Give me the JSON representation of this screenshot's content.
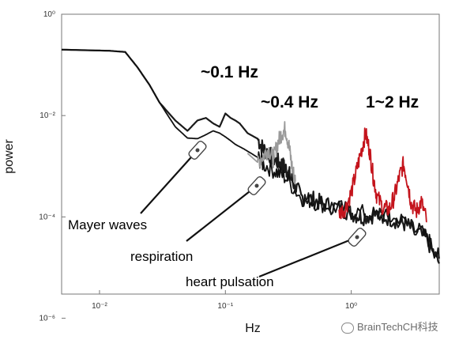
{
  "chart_data": {
    "type": "line",
    "xlabel": "Hz",
    "ylabel": "power",
    "x_scale": "log",
    "y_scale": "log",
    "xlim": [
      0.005,
      5
    ],
    "ylim": [
      3e-06,
      1
    ],
    "x_ticks": [
      {
        "value": 0.01,
        "label": "10⁻²"
      },
      {
        "value": 0.1,
        "label": "10⁻¹"
      },
      {
        "value": 1,
        "label": "10⁰"
      }
    ],
    "y_ticks": [
      {
        "value": 1,
        "label": "10⁰"
      },
      {
        "value": 0.01,
        "label": "10⁻²"
      },
      {
        "value": 0.0001,
        "label": "10⁻⁴"
      },
      {
        "value": 1e-06,
        "label": "10⁻⁶"
      }
    ],
    "grid": false,
    "series": [
      {
        "color": "#1a1a1a",
        "x": [
          0.005,
          0.012,
          0.016,
          0.02,
          0.025,
          0.03,
          0.04,
          0.05,
          0.06,
          0.07,
          0.08,
          0.09,
          0.1,
          0.11,
          0.12,
          0.13,
          0.15,
          0.18,
          0.2,
          0.22,
          0.25,
          0.28,
          0.3,
          0.32,
          0.35,
          0.4,
          0.5,
          0.6,
          0.8,
          1.0,
          1.2,
          1.5,
          2.0,
          2.5,
          3.0,
          4.0,
          5.0
        ],
        "y": [
          0.2,
          0.19,
          0.18,
          0.09,
          0.04,
          0.018,
          0.008,
          0.005,
          0.008,
          0.009,
          0.007,
          0.006,
          0.011,
          0.009,
          0.008,
          0.007,
          0.0045,
          0.0035,
          0.0022,
          0.0018,
          0.0013,
          0.0011,
          0.0009,
          0.0007,
          0.00045,
          0.00025,
          0.00022,
          0.00018,
          0.00015,
          0.00012,
          0.0001,
          0.00011,
          9.5e-05,
          8e-05,
          6e-05,
          3.5e-05,
          1.2e-05
        ]
      },
      {
        "color": "#111111",
        "x": [
          0.005,
          0.012,
          0.016,
          0.02,
          0.025,
          0.03,
          0.04,
          0.05,
          0.06,
          0.07,
          0.08,
          0.09,
          0.1,
          0.11,
          0.12,
          0.14,
          0.16,
          0.18,
          0.2,
          0.25,
          0.3,
          0.4,
          0.5,
          0.7,
          1.0,
          1.5,
          2.0,
          3.0,
          4.0,
          5.0
        ],
        "y": [
          0.2,
          0.19,
          0.18,
          0.09,
          0.04,
          0.018,
          0.006,
          0.0036,
          0.0035,
          0.0042,
          0.005,
          0.0045,
          0.0038,
          0.0032,
          0.0027,
          0.0022,
          0.0018,
          0.0015,
          0.0011,
          0.0008,
          0.0006,
          0.00024,
          0.0002,
          0.00016,
          0.00013,
          0.00011,
          9.5e-05,
          7e-05,
          4e-05,
          1.5e-05
        ]
      },
      {
        "color": "#9a9a9a",
        "x": [
          0.15,
          0.18,
          0.2,
          0.22,
          0.24,
          0.26,
          0.28,
          0.3,
          0.32,
          0.34,
          0.36
        ],
        "y": [
          0.0018,
          0.0012,
          0.0016,
          0.0022,
          0.0014,
          0.0028,
          0.0045,
          0.0055,
          0.0025,
          0.0009,
          0.0005
        ]
      },
      {
        "color": "#c4141c",
        "x": [
          0.8,
          0.9,
          1.0,
          1.1,
          1.2,
          1.3,
          1.4,
          1.5,
          1.6,
          1.8,
          2.0,
          2.2,
          2.4,
          2.6,
          2.8,
          3.0,
          3.3,
          3.6,
          4.0
        ],
        "y": [
          0.00012,
          0.00015,
          0.0003,
          0.0008,
          0.002,
          0.0045,
          0.002,
          0.0006,
          0.00025,
          0.00015,
          0.00014,
          0.00025,
          0.0006,
          0.0011,
          0.0005,
          0.00018,
          0.00013,
          0.0002,
          8e-05
        ]
      }
    ],
    "annotations": {
      "freq_labels": [
        {
          "text": "~0.1 Hz",
          "color": "#111111"
        },
        {
          "text": "~0.4 Hz",
          "color": "#a8a8a8"
        },
        {
          "text": "1~2 Hz",
          "color": "#c4141c"
        }
      ],
      "callouts": [
        {
          "text": "Mayer waves",
          "color": "#1a1a1a"
        },
        {
          "text": "respiration",
          "color": "#9a9a9a"
        },
        {
          "text": "heart pulsation",
          "color": "#b3142a"
        }
      ]
    }
  },
  "watermark": {
    "text": "BrainTechCH科技",
    "icon": "chat-bubble-icon"
  }
}
